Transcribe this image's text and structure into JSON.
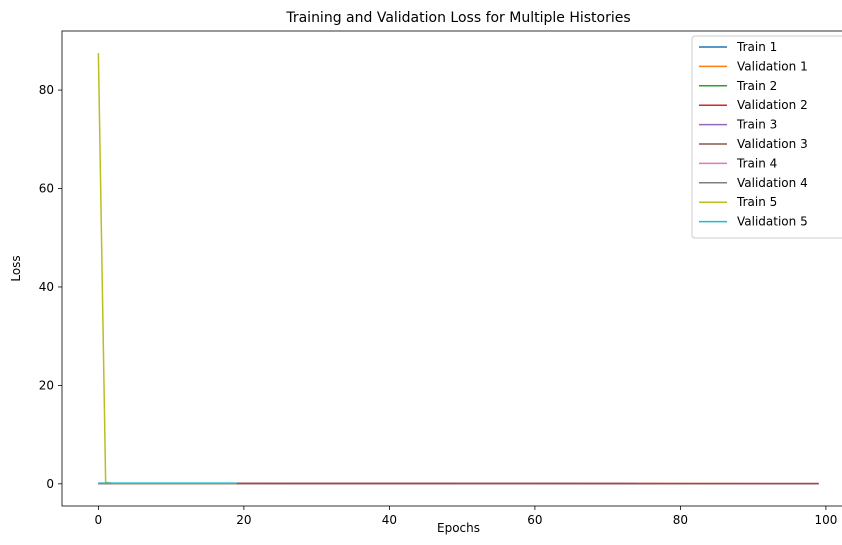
{
  "chart_data": {
    "type": "line",
    "title": "Training and Validation Loss for Multiple Histories",
    "xlabel": "Epochs",
    "ylabel": "Loss",
    "xlim": [
      -5,
      104
    ],
    "ylim": [
      -4.5,
      92
    ],
    "xticks": [
      0,
      20,
      40,
      60,
      80,
      100
    ],
    "yticks": [
      0,
      20,
      40,
      60,
      80
    ],
    "grid": false,
    "legend_position": "top-right",
    "series": [
      {
        "name": "Train 1",
        "color": "#1f77b4",
        "x": [
          0,
          99
        ],
        "y": [
          0.05,
          0.05
        ]
      },
      {
        "name": "Validation 1",
        "color": "#ff7f0e",
        "x": [
          0,
          99
        ],
        "y": [
          0.05,
          0.05
        ]
      },
      {
        "name": "Train 2",
        "color": "#2ca02c",
        "x": [
          0,
          49
        ],
        "y": [
          0.1,
          0.1
        ]
      },
      {
        "name": "Validation 2",
        "color": "#d62728",
        "x": [
          0,
          49,
          99
        ],
        "y": [
          0.12,
          0.1,
          0.05
        ]
      },
      {
        "name": "Train 3",
        "color": "#9467bd",
        "x": [
          0,
          99
        ],
        "y": [
          0.08,
          0.05
        ]
      },
      {
        "name": "Validation 3",
        "color": "#8c564b",
        "x": [
          0,
          99
        ],
        "y": [
          0.08,
          0.05
        ]
      },
      {
        "name": "Train 4",
        "color": "#e377c2",
        "x": [
          0,
          19
        ],
        "y": [
          0.1,
          0.1
        ]
      },
      {
        "name": "Validation 4",
        "color": "#7f7f7f",
        "x": [
          0,
          19
        ],
        "y": [
          0.1,
          0.1
        ]
      },
      {
        "name": "Train 5",
        "color": "#bcbd22",
        "x": [
          0,
          1,
          2,
          19
        ],
        "y": [
          87.5,
          0.3,
          0.1,
          0.1
        ]
      },
      {
        "name": "Validation 5",
        "color": "#17becf",
        "x": [
          0,
          19
        ],
        "y": [
          0.15,
          0.15
        ]
      }
    ]
  }
}
